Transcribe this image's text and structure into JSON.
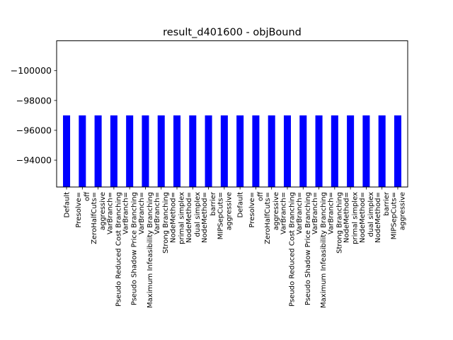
{
  "chart_data": {
    "type": "bar",
    "title": "result_d401600 - objBound",
    "xlabel": "",
    "ylabel": "",
    "y_inverted": true,
    "ylim": [
      -92200,
      -102000
    ],
    "yticks": [
      -100000,
      -98000,
      -96000,
      -94000
    ],
    "ytick_labels": [
      "−100000",
      "−98000",
      "−96000",
      "−94000"
    ],
    "grid": false,
    "bar_color": "#0000ff",
    "categories": [
      "Default",
      "Presolve=\noff",
      "ZeroHalfCuts=\naggressive",
      "VarBranch=\nPseudo Reduced Cost Branching",
      "VarBranch=\nPseudo Shadow Price Branching",
      "VarBranch=\nMaximum Infeasibility Branching",
      "VarBranch=\nStrong Branching",
      "NodeMethod=\nprimal simplex",
      "NodeMethod=\ndual simplex",
      "NodeMethod=\nbarrier",
      "MIPSepCuts=\naggressive",
      "Default",
      "Presolve=\noff",
      "ZeroHalfCuts=\naggressive",
      "VarBranch=\nPseudo Reduced Cost Branching",
      "VarBranch=\nPseudo Shadow Price Branching",
      "VarBranch=\nMaximum Infeasibility Branching",
      "VarBranch=\nStrong Branching",
      "NodeMethod=\nprimal simplex",
      "NodeMethod=\ndual simplex",
      "NodeMethod=\nbarrier",
      "MIPSepCuts=\naggressive"
    ],
    "values": [
      -97000,
      -97000,
      -97000,
      -97000,
      -97000,
      -97000,
      -97000,
      -97000,
      -97000,
      -97000,
      -97000,
      -97000,
      -97000,
      -97000,
      -97000,
      -97000,
      -97000,
      -97000,
      -97000,
      -97000,
      -97000,
      -97000
    ]
  }
}
